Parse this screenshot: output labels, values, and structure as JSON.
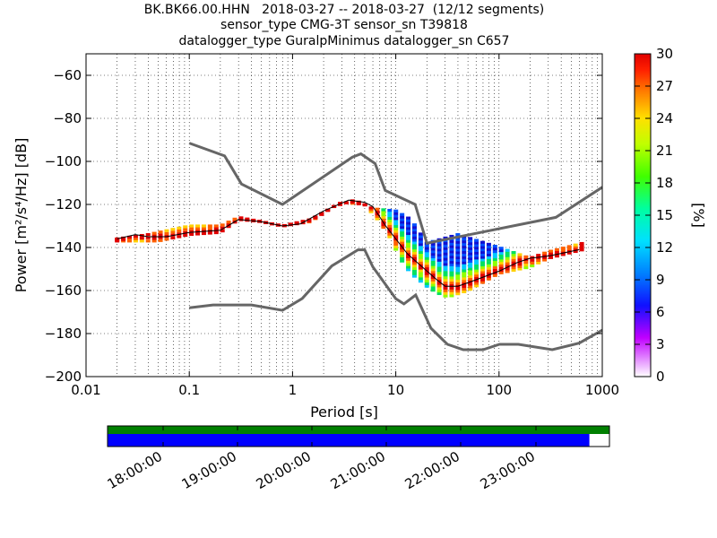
{
  "title_lines": [
    "BK.BK66.00.HHN   2018-03-27 -- 2018-03-27  (12/12 segments)",
    "sensor_type CMG-3T sensor_sn T39818",
    "datalogger_type GuralpMinimus datalogger_sn C657"
  ],
  "chart_data": {
    "type": "heatmap",
    "xlabel": "Period [s]",
    "ylabel": "Power [m²/s⁴/Hz] [dB]",
    "x_scale": "log",
    "xlim": [
      0.01,
      1000
    ],
    "ylim": [
      -200,
      -50
    ],
    "x_ticks": [
      0.01,
      0.1,
      1,
      10,
      100,
      1000
    ],
    "x_tick_labels": [
      "0.01",
      "0.1",
      "1",
      "10",
      "100",
      "1000"
    ],
    "y_ticks": [
      -200,
      -180,
      -160,
      -140,
      -120,
      -100,
      -80,
      -60
    ],
    "y_tick_labels": [
      "−200",
      "−180",
      "−160",
      "−140",
      "−120",
      "−100",
      "−80",
      "−60"
    ],
    "grid": true,
    "colorbar": {
      "label": "[%]",
      "range": [
        0,
        30
      ],
      "ticks": [
        0,
        3,
        6,
        9,
        12,
        15,
        18,
        21,
        24,
        27,
        30
      ]
    },
    "nhnm_curve": [
      [
        0.1,
        -91.5
      ],
      [
        0.22,
        -97.4
      ],
      [
        0.32,
        -110.5
      ],
      [
        0.8,
        -120
      ],
      [
        3.8,
        -98
      ],
      [
        4.6,
        -96.5
      ],
      [
        6.3,
        -101
      ],
      [
        7.9,
        -113.5
      ],
      [
        15.4,
        -120
      ],
      [
        20,
        -138
      ],
      [
        354.8,
        -126
      ],
      [
        1000,
        -112
      ]
    ],
    "nlnm_curve": [
      [
        0.1,
        -168
      ],
      [
        0.17,
        -166.7
      ],
      [
        0.4,
        -166.7
      ],
      [
        0.8,
        -169.2
      ],
      [
        1.24,
        -163.7
      ],
      [
        2.4,
        -148.6
      ],
      [
        4.3,
        -141.1
      ],
      [
        5,
        -141.1
      ],
      [
        6,
        -149
      ],
      [
        10,
        -163.8
      ],
      [
        12,
        -166.2
      ],
      [
        15.6,
        -162.1
      ],
      [
        21.9,
        -177.5
      ],
      [
        31.6,
        -185
      ],
      [
        45,
        -187.5
      ],
      [
        70,
        -187.5
      ],
      [
        101,
        -185
      ],
      [
        154,
        -185
      ],
      [
        328,
        -187.5
      ],
      [
        600,
        -184.4
      ],
      [
        1000,
        -178.4
      ]
    ],
    "mode_curve": [
      [
        0.02,
        -136
      ],
      [
        0.03,
        -134
      ],
      [
        0.04,
        -135
      ],
      [
        0.06,
        -135
      ],
      [
        0.1,
        -133
      ],
      [
        0.2,
        -132
      ],
      [
        0.3,
        -127
      ],
      [
        0.5,
        -128
      ],
      [
        0.8,
        -130
      ],
      [
        1.2,
        -129
      ],
      [
        2,
        -123
      ],
      [
        3.5,
        -118
      ],
      [
        5,
        -119
      ],
      [
        6,
        -121
      ],
      [
        8,
        -130
      ],
      [
        10,
        -136
      ],
      [
        13,
        -143
      ],
      [
        18,
        -149
      ],
      [
        25,
        -155
      ],
      [
        30,
        -158
      ],
      [
        40,
        -158
      ],
      [
        60,
        -155
      ],
      [
        100,
        -151
      ],
      [
        150,
        -147
      ],
      [
        200,
        -145
      ],
      [
        300,
        -144
      ],
      [
        600,
        -141
      ]
    ],
    "density_bands": [
      {
        "name": "upper",
        "points": [
          [
            0.02,
            -136
          ],
          [
            0.04,
            -134
          ],
          [
            0.1,
            -130
          ],
          [
            0.2,
            -130
          ],
          [
            0.3,
            -126
          ],
          [
            0.5,
            -128
          ],
          [
            0.8,
            -130
          ],
          [
            1.5,
            -128
          ],
          [
            2.5,
            -121
          ],
          [
            4,
            -118
          ],
          [
            6,
            -122
          ],
          [
            10,
            -123
          ],
          [
            14,
            -127
          ],
          [
            20,
            -138
          ],
          [
            40,
            -134
          ],
          [
            100,
            -140
          ],
          [
            200,
            -145
          ],
          [
            300,
            -142
          ],
          [
            650,
            -138
          ]
        ]
      },
      {
        "name": "lower",
        "points": [
          [
            0.02,
            -137
          ],
          [
            0.05,
            -137
          ],
          [
            0.1,
            -134
          ],
          [
            0.2,
            -133
          ],
          [
            0.3,
            -127
          ],
          [
            0.5,
            -128
          ],
          [
            0.8,
            -130
          ],
          [
            1.5,
            -127
          ],
          [
            3,
            -119
          ],
          [
            5,
            -120
          ],
          [
            7,
            -128
          ],
          [
            9,
            -136
          ],
          [
            11,
            -145
          ],
          [
            14,
            -152
          ],
          [
            20,
            -158
          ],
          [
            25,
            -161
          ],
          [
            32,
            -163
          ],
          [
            50,
            -160
          ],
          [
            100,
            -152
          ],
          [
            200,
            -149
          ],
          [
            300,
            -145
          ],
          [
            650,
            -141
          ]
        ]
      }
    ]
  },
  "time_axis": {
    "tick_labels": [
      "18:00:00",
      "19:00:00",
      "20:00:00",
      "21:00:00",
      "22:00:00",
      "23:00:00"
    ],
    "data_coverage": [
      0,
      0.96
    ],
    "overall_coverage": [
      0,
      1.0
    ],
    "coverage_color": "#0000ff",
    "overall_color": "#008000"
  }
}
